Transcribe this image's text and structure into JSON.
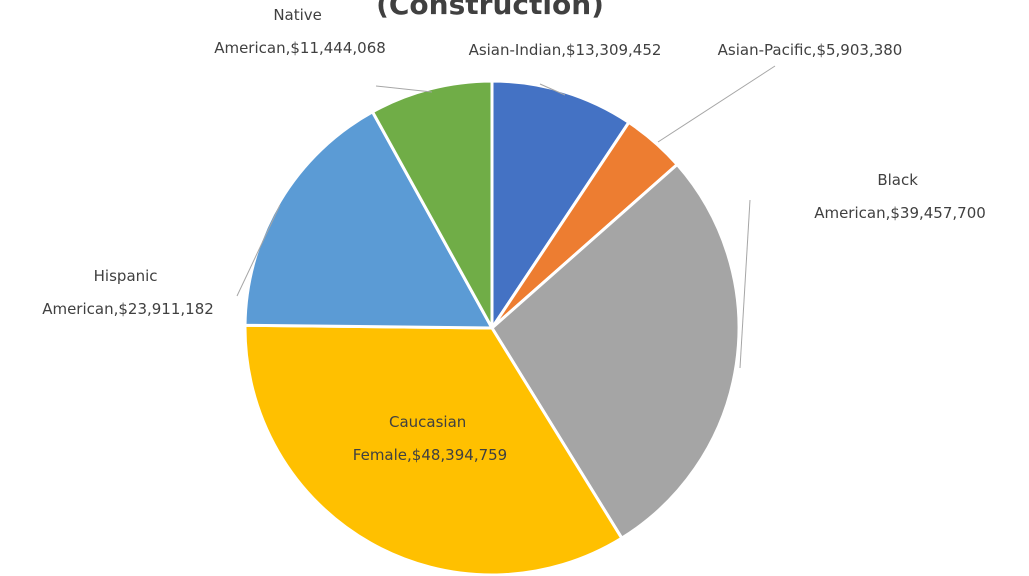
{
  "chart_data": {
    "type": "pie",
    "title": "(Construction)",
    "labels": [
      "Asian-Indian,$13,309,452",
      "Asian-Pacific,$5,903,380",
      "Black American,$39,457,700",
      "Caucasian Female,$48,394,759",
      "Hispanic American,$23,911,182",
      "Native American,$11,444,068"
    ],
    "values": [
      13309452,
      5903380,
      39457700,
      48394759,
      23911182,
      11444068
    ],
    "colors": [
      "#4472c4",
      "#ed7d31",
      "#a5a5a5",
      "#ffc000",
      "#5b9bd5",
      "#70ad47"
    ]
  }
}
